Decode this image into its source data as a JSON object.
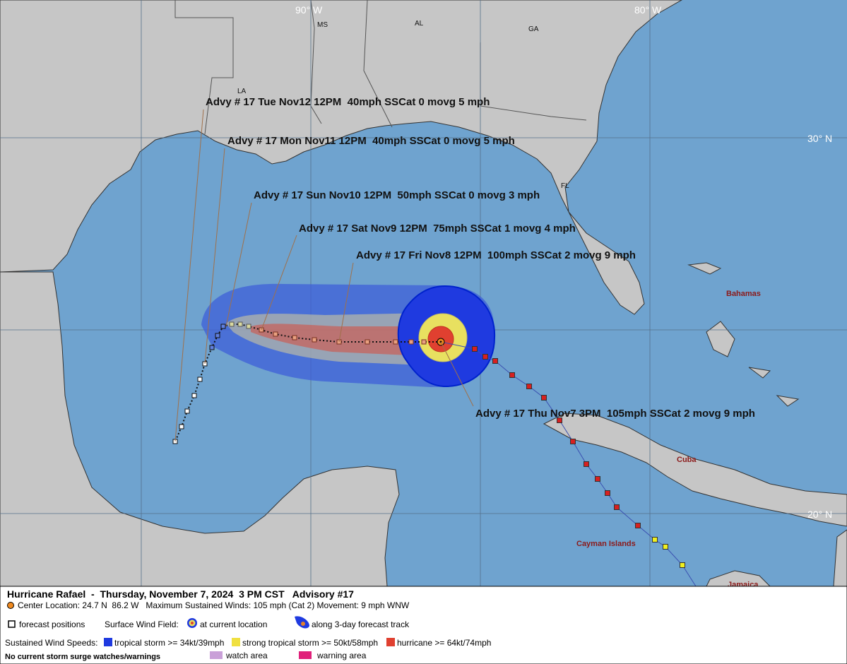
{
  "map": {
    "lon_labels": [
      "90° W",
      "80° W"
    ],
    "lat_labels": [
      "30° N",
      "20° N"
    ],
    "states": [
      "MS",
      "AL",
      "GA",
      "LA",
      "FL"
    ],
    "places": [
      "Bahamas",
      "Cuba",
      "Cayman Islands",
      "Jamaica"
    ],
    "advisories": [
      "Advy # 17 Tue Nov12 12PM  40mph SSCat 0 movg 5 mph",
      "Advy # 17 Mon Nov11 12PM  40mph SSCat 0 movg 5 mph",
      "Advy # 17 Sun Nov10 12PM  50mph SSCat 0 movg 3 mph",
      "Advy # 17 Sat Nov9 12PM  75mph SSCat 1 movg 4 mph",
      "Advy # 17 Fri Nov8 12PM  100mph SSCat 2 movg 9 mph",
      "Advy # 17 Thu Nov7 3PM  105mph SSCat 2 movg 9 mph"
    ]
  },
  "legend": {
    "title": "Hurricane Rafael  -  Thursday, November 7, 2024  3 PM CST   Advisory #17",
    "center": "Center Location: 24.7 N  86.2 W   Maximum Sustained Winds: 105 mph (Cat 2) Movement: 9 mph WNW",
    "forecast_positions": "forecast positions",
    "surface_wind_field": "Surface Wind Field:",
    "at_current_location": "at current location",
    "along_track": "along 3-day forecast track",
    "sustained_wind_speeds": "Sustained Wind Speeds:",
    "tropical_storm": "tropical storm >= 34kt/39mph",
    "strong_tropical_storm": "strong tropical storm >= 50kt/58mph",
    "hurricane": "hurricane >= 64kt/74mph",
    "surge": "No current storm surge watches/warnings",
    "watch_area": "watch area",
    "warning_area": "warning area"
  }
}
